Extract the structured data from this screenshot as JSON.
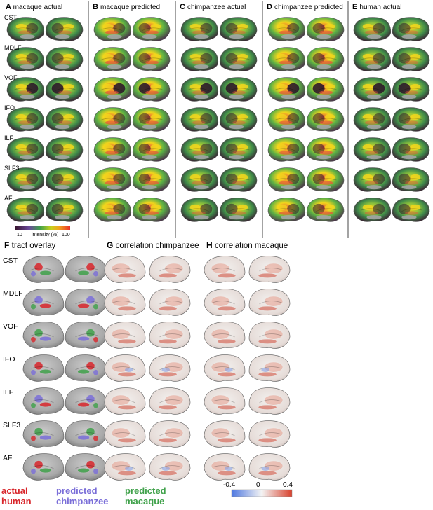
{
  "panels_top": [
    {
      "letter": "A",
      "title": "macaque actual",
      "style": "actual"
    },
    {
      "letter": "B",
      "title": "macaque predicted",
      "style": "predicted"
    },
    {
      "letter": "C",
      "title": "chimpanzee actual",
      "style": "actual"
    },
    {
      "letter": "D",
      "title": "chimpanzee predicted",
      "style": "predicted"
    },
    {
      "letter": "E",
      "title": "human actual",
      "style": "actual"
    }
  ],
  "panels_bottom": [
    {
      "letter": "F",
      "title": "tract overlay",
      "style": "overlay"
    },
    {
      "letter": "G",
      "title": "correlation chimpanzee",
      "style": "correlation"
    },
    {
      "letter": "H",
      "title": "correlation macaque",
      "style": "correlation"
    }
  ],
  "tracts": [
    "CST",
    "MDLF",
    "VOF",
    "IFO",
    "ILF",
    "SLF3",
    "AF"
  ],
  "intensity_colorbar": {
    "min_label": "10",
    "label": "intensity (%)",
    "max_label": "100"
  },
  "correlation_colorbar": {
    "labels": [
      "-0.4",
      "0",
      "0.4"
    ]
  },
  "overlay_legend": [
    {
      "line1": "actual",
      "line2": "human",
      "color": "#d8262b"
    },
    {
      "line1": "predicted",
      "line2": "chimpanzee",
      "color": "#7a6ed8"
    },
    {
      "line1": "predicted",
      "line2": "macaque",
      "color": "#3fa14a"
    }
  ],
  "colors": {
    "heat_dark": "#3a1530",
    "heat_green": "#5ab045",
    "heat_yellow": "#f2d61c",
    "heat_red": "#e8503a",
    "brain_gray": "#a9a9a9",
    "corr_pos": "#d9604a",
    "corr_neg": "#6f8fe0",
    "divider": "#666666"
  }
}
